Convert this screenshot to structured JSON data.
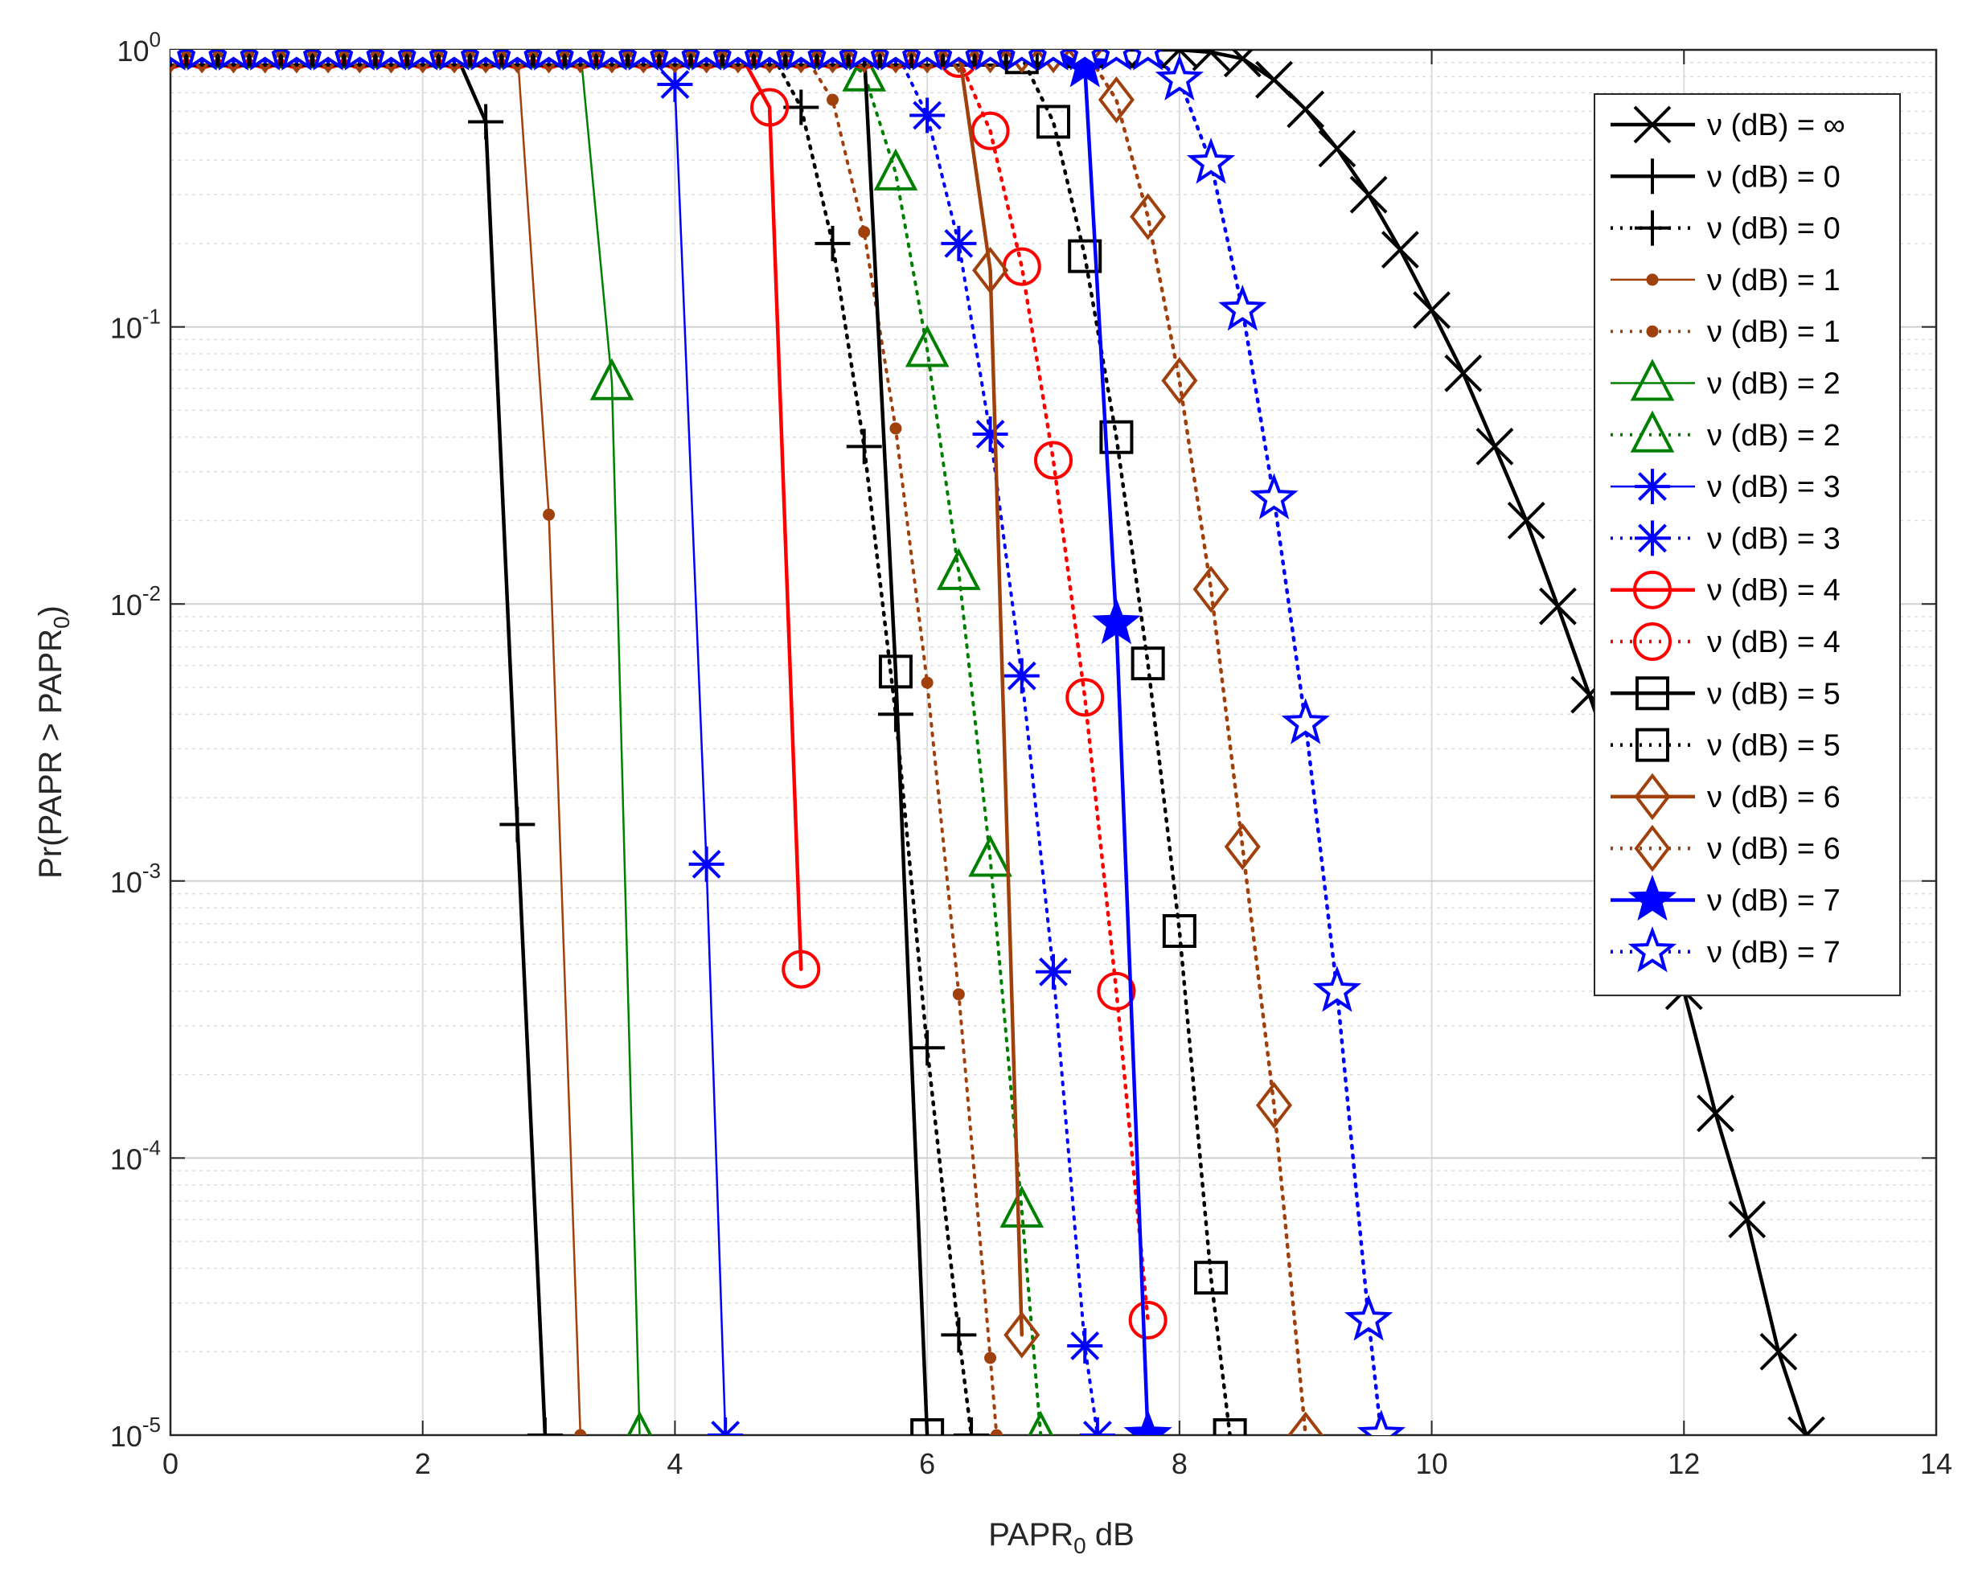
{
  "chart_data": {
    "type": "line",
    "title": "",
    "xlabel": "PAPR",
    "xlabel_sub": "0",
    "xlabel_suffix": " dB",
    "ylabel": "Pr(PAPR > PAPR",
    "ylabel_sub": "0",
    "ylabel_suffix": ")",
    "x_scale": "linear",
    "y_scale": "log",
    "xlim": [
      0,
      14
    ],
    "ylim": [
      1e-05,
      1
    ],
    "xticks": [
      0,
      2,
      4,
      6,
      8,
      10,
      12,
      14
    ],
    "xtick_labels": [
      "0",
      "2",
      "4",
      "6",
      "8",
      "10",
      "12",
      "14"
    ],
    "yticks": [
      1e-05,
      0.0001,
      0.001,
      0.01,
      0.1,
      1
    ],
    "ytick_labels": [
      {
        "base": "10",
        "exp": "-5"
      },
      {
        "base": "10",
        "exp": "-4"
      },
      {
        "base": "10",
        "exp": "-3"
      },
      {
        "base": "10",
        "exp": "-2"
      },
      {
        "base": "10",
        "exp": "-1"
      },
      {
        "base": "10",
        "exp": "0"
      }
    ],
    "grid": true,
    "legend_position": "top-right",
    "series": [
      {
        "name": "ν (dB) = ∞",
        "color": "#000000",
        "dash": "solid",
        "marker": "x",
        "x": [
          0,
          0.25,
          0.5,
          0.75,
          1,
          1.25,
          1.5,
          1.75,
          2,
          2.25,
          2.5,
          2.75,
          3,
          3.25,
          3.5,
          3.75,
          4,
          4.25,
          4.5,
          4.75,
          5,
          5.25,
          5.5,
          5.75,
          6,
          6.25,
          6.5,
          6.75,
          7,
          7.25,
          7.5,
          7.75,
          8,
          8.25,
          8.5,
          8.75,
          9,
          9.25,
          9.5,
          9.75,
          10,
          10.25,
          10.5,
          10.75,
          11,
          11.25,
          11.5,
          11.75,
          12,
          12.25,
          12.5,
          12.75,
          12.97
        ],
        "y": [
          1,
          1,
          1,
          1,
          1,
          1,
          1,
          1,
          1,
          1,
          1,
          1,
          1,
          1,
          1,
          1,
          1,
          1,
          1,
          1,
          1,
          1,
          1,
          1,
          1,
          1,
          1,
          1,
          1,
          1,
          1,
          1,
          1,
          0.98,
          0.93,
          0.78,
          0.61,
          0.44,
          0.3,
          0.19,
          0.115,
          0.068,
          0.037,
          0.02,
          0.0098,
          0.0047,
          0.0022,
          0.00095,
          0.0004,
          0.000145,
          6e-05,
          2e-05,
          1e-05
        ]
      },
      {
        "name": "ν (dB) = 0",
        "color": "#000000",
        "dash": "solid",
        "marker": "plus",
        "x": [
          0,
          0.25,
          0.5,
          0.75,
          1,
          1.25,
          1.5,
          1.75,
          2,
          2.25,
          2.5,
          2.75,
          2.97
        ],
        "y": [
          1,
          1,
          1,
          1,
          1,
          1,
          1,
          1,
          1,
          1,
          0.55,
          0.0016,
          1e-05
        ]
      },
      {
        "name": "ν (dB) = 0",
        "color": "#000000",
        "dash": "dotted",
        "marker": "plus",
        "x": [
          0,
          0.25,
          0.5,
          0.75,
          1,
          1.25,
          1.5,
          1.75,
          2,
          2.25,
          2.5,
          2.75,
          3,
          3.25,
          3.5,
          3.75,
          4,
          4.25,
          4.5,
          4.75,
          5,
          5.25,
          5.5,
          5.75,
          6,
          6.25,
          6.35
        ],
        "y": [
          1,
          1,
          1,
          1,
          1,
          1,
          1,
          1,
          1,
          1,
          1,
          1,
          1,
          1,
          1,
          1,
          1,
          1,
          1,
          1,
          0.62,
          0.2,
          0.037,
          0.004,
          0.00025,
          2.3e-05,
          1e-05
        ]
      },
      {
        "name": "ν (dB) = 1",
        "color": "#A0400C",
        "dash": "solid",
        "marker": "dot",
        "x": [
          0,
          0.25,
          0.5,
          0.75,
          1,
          1.25,
          1.5,
          1.75,
          2,
          2.25,
          2.5,
          2.75,
          3,
          3.25
        ],
        "y": [
          1,
          1,
          1,
          1,
          1,
          1,
          1,
          1,
          1,
          1,
          1,
          1,
          0.021,
          1e-05
        ]
      },
      {
        "name": "ν (dB) = 1",
        "color": "#A0400C",
        "dash": "dotted",
        "marker": "dot",
        "x": [
          0,
          0.25,
          0.5,
          0.75,
          1,
          1.25,
          1.5,
          1.75,
          2,
          2.25,
          2.5,
          2.75,
          3,
          3.25,
          3.5,
          3.75,
          4,
          4.25,
          4.5,
          4.75,
          5,
          5.25,
          5.5,
          5.75,
          6,
          6.25,
          6.5,
          6.55
        ],
        "y": [
          1,
          1,
          1,
          1,
          1,
          1,
          1,
          1,
          1,
          1,
          1,
          1,
          1,
          1,
          1,
          1,
          1,
          1,
          1,
          1,
          1,
          0.66,
          0.22,
          0.043,
          0.0052,
          0.00039,
          1.9e-05,
          1e-05
        ]
      },
      {
        "name": "ν (dB) = 2",
        "color": "#008000",
        "dash": "solid",
        "marker": "triangle",
        "x": [
          0,
          0.25,
          0.5,
          0.75,
          1,
          1.25,
          1.5,
          1.75,
          2,
          2.25,
          2.5,
          2.75,
          3,
          3.25,
          3.5,
          3.72
        ],
        "y": [
          1,
          1,
          1,
          1,
          1,
          1,
          1,
          1,
          1,
          1,
          1,
          1,
          1,
          1,
          0.063,
          1e-05
        ]
      },
      {
        "name": "ν (dB) = 2",
        "color": "#008000",
        "dash": "dotted",
        "marker": "triangle",
        "x": [
          0,
          0.25,
          0.5,
          0.75,
          1,
          1.25,
          1.5,
          1.75,
          2,
          2.25,
          2.5,
          2.75,
          3,
          3.25,
          3.5,
          3.75,
          4,
          4.25,
          4.5,
          4.75,
          5,
          5.25,
          5.5,
          5.75,
          6,
          6.25,
          6.5,
          6.75,
          6.9
        ],
        "y": [
          1,
          1,
          1,
          1,
          1,
          1,
          1,
          1,
          1,
          1,
          1,
          1,
          1,
          1,
          1,
          1,
          1,
          1,
          1,
          1,
          1,
          1,
          0.82,
          0.36,
          0.083,
          0.013,
          0.0012,
          6.5e-05,
          1e-05
        ]
      },
      {
        "name": "ν (dB) = 3",
        "color": "#0000FF",
        "dash": "solid",
        "marker": "asterisk",
        "x": [
          0,
          0.25,
          0.5,
          0.75,
          1,
          1.25,
          1.5,
          1.75,
          2,
          2.25,
          2.5,
          2.75,
          3,
          3.25,
          3.5,
          3.75,
          4,
          4.25,
          4.4
        ],
        "y": [
          1,
          1,
          1,
          1,
          1,
          1,
          1,
          1,
          1,
          1,
          1,
          1,
          1,
          1,
          1,
          1,
          0.75,
          0.00115,
          1e-05
        ]
      },
      {
        "name": "ν (dB) = 3",
        "color": "#0000FF",
        "dash": "dotted",
        "marker": "asterisk",
        "x": [
          0,
          0.25,
          0.5,
          0.75,
          1,
          1.25,
          1.5,
          1.75,
          2,
          2.25,
          2.5,
          2.75,
          3,
          3.25,
          3.5,
          3.75,
          4,
          4.25,
          4.5,
          4.75,
          5,
          5.25,
          5.5,
          5.75,
          6,
          6.25,
          6.5,
          6.75,
          7,
          7.25,
          7.35
        ],
        "y": [
          1,
          1,
          1,
          1,
          1,
          1,
          1,
          1,
          1,
          1,
          1,
          1,
          1,
          1,
          1,
          1,
          1,
          1,
          1,
          1,
          1,
          1,
          1,
          1,
          0.58,
          0.2,
          0.041,
          0.0055,
          0.00047,
          2.1e-05,
          1e-05
        ]
      },
      {
        "name": "ν (dB) = 4",
        "color": "#FF0000",
        "dash": "solid",
        "marker": "circle",
        "x": [
          0,
          0.25,
          0.5,
          0.75,
          1,
          1.25,
          1.5,
          1.75,
          2,
          2.25,
          2.5,
          2.75,
          3,
          3.25,
          3.5,
          3.75,
          4,
          4.25,
          4.5,
          4.75,
          5
        ],
        "y": [
          1,
          1,
          1,
          1,
          1,
          1,
          1,
          1,
          1,
          1,
          1,
          1,
          1,
          1,
          1,
          1,
          1,
          1,
          1,
          0.62,
          0.00048
        ]
      },
      {
        "name": "ν (dB) = 4",
        "color": "#FF0000",
        "dash": "dotted",
        "marker": "circle",
        "x": [
          0,
          0.25,
          0.5,
          0.75,
          1,
          1.25,
          1.5,
          1.75,
          2,
          2.25,
          2.5,
          2.75,
          3,
          3.25,
          3.5,
          3.75,
          4,
          4.25,
          4.5,
          4.75,
          5,
          5.25,
          5.5,
          5.75,
          6,
          6.25,
          6.5,
          6.75,
          7,
          7.25,
          7.5,
          7.75
        ],
        "y": [
          1,
          1,
          1,
          1,
          1,
          1,
          1,
          1,
          1,
          1,
          1,
          1,
          1,
          1,
          1,
          1,
          1,
          1,
          1,
          1,
          1,
          1,
          1,
          1,
          1,
          0.93,
          0.51,
          0.165,
          0.033,
          0.0046,
          0.0004,
          2.6e-05
        ]
      },
      {
        "name": "ν (dB) = 5",
        "color": "#000000",
        "dash": "solid",
        "marker": "square",
        "x": [
          0,
          0.25,
          0.5,
          0.75,
          1,
          1.25,
          1.5,
          1.75,
          2,
          2.25,
          2.5,
          2.75,
          3,
          3.25,
          3.5,
          3.75,
          4,
          4.25,
          4.5,
          4.75,
          5,
          5.25,
          5.5,
          5.75,
          6
        ],
        "y": [
          1,
          1,
          1,
          1,
          1,
          1,
          1,
          1,
          1,
          1,
          1,
          1,
          1,
          1,
          1,
          1,
          1,
          1,
          1,
          1,
          1,
          1,
          1,
          0.0057,
          1e-05
        ]
      },
      {
        "name": "ν (dB) = 5",
        "color": "#000000",
        "dash": "dotted",
        "marker": "square",
        "x": [
          0,
          0.25,
          0.5,
          0.75,
          1,
          1.25,
          1.5,
          1.75,
          2,
          2.25,
          2.5,
          2.75,
          3,
          3.25,
          3.5,
          3.75,
          4,
          4.25,
          4.5,
          4.75,
          5,
          5.25,
          5.5,
          5.75,
          6,
          6.25,
          6.5,
          6.75,
          7,
          7.25,
          7.5,
          7.75,
          8,
          8.25,
          8.4
        ],
        "y": [
          1,
          1,
          1,
          1,
          1,
          1,
          1,
          1,
          1,
          1,
          1,
          1,
          1,
          1,
          1,
          1,
          1,
          1,
          1,
          1,
          1,
          1,
          1,
          1,
          1,
          1,
          1,
          0.94,
          0.55,
          0.18,
          0.04,
          0.0061,
          0.00066,
          3.7e-05,
          1e-05
        ]
      },
      {
        "name": "ν (dB) = 6",
        "color": "#A0400C",
        "dash": "solid",
        "marker": "diamond",
        "x": [
          0,
          0.25,
          0.5,
          0.75,
          1,
          1.25,
          1.5,
          1.75,
          2,
          2.25,
          2.5,
          2.75,
          3,
          3.25,
          3.5,
          3.75,
          4,
          4.25,
          4.5,
          4.75,
          5,
          5.25,
          5.5,
          5.75,
          6,
          6.25,
          6.5,
          6.75
        ],
        "y": [
          1,
          1,
          1,
          1,
          1,
          1,
          1,
          1,
          1,
          1,
          1,
          1,
          1,
          1,
          1,
          1,
          1,
          1,
          1,
          1,
          1,
          1,
          1,
          1,
          1,
          1,
          0.16,
          2.3e-05
        ]
      },
      {
        "name": "ν (dB) = 6",
        "color": "#A0400C",
        "dash": "dotted",
        "marker": "diamond",
        "x": [
          0,
          0.25,
          0.5,
          0.75,
          1,
          1.25,
          1.5,
          1.75,
          2,
          2.25,
          2.5,
          2.75,
          3,
          3.25,
          3.5,
          3.75,
          4,
          4.25,
          4.5,
          4.75,
          5,
          5.25,
          5.5,
          5.75,
          6,
          6.25,
          6.5,
          6.75,
          7,
          7.25,
          7.5,
          7.75,
          8,
          8.25,
          8.5,
          8.75,
          9
        ],
        "y": [
          1,
          1,
          1,
          1,
          1,
          1,
          1,
          1,
          1,
          1,
          1,
          1,
          1,
          1,
          1,
          1,
          1,
          1,
          1,
          1,
          1,
          1,
          1,
          1,
          1,
          1,
          1,
          1,
          1,
          1,
          0.66,
          0.25,
          0.064,
          0.0113,
          0.00133,
          0.000155,
          1e-05
        ]
      },
      {
        "name": "ν (dB) = 7",
        "color": "#0000FF",
        "dash": "solid",
        "marker": "star-filled",
        "x": [
          0,
          0.25,
          0.5,
          0.75,
          1,
          1.25,
          1.5,
          1.75,
          2,
          2.25,
          2.5,
          2.75,
          3,
          3.25,
          3.5,
          3.75,
          4,
          4.25,
          4.5,
          4.75,
          5,
          5.25,
          5.5,
          5.75,
          6,
          6.25,
          6.5,
          6.75,
          7,
          7.25,
          7.5,
          7.75
        ],
        "y": [
          1,
          1,
          1,
          1,
          1,
          1,
          1,
          1,
          1,
          1,
          1,
          1,
          1,
          1,
          1,
          1,
          1,
          1,
          1,
          1,
          1,
          1,
          1,
          1,
          1,
          1,
          1,
          1,
          1,
          0.87,
          0.0085,
          1e-05
        ]
      },
      {
        "name": "ν (dB) = 7",
        "color": "#0000FF",
        "dash": "dotted",
        "marker": "star-open",
        "x": [
          0,
          0.25,
          0.5,
          0.75,
          1,
          1.25,
          1.5,
          1.75,
          2,
          2.25,
          2.5,
          2.75,
          3,
          3.25,
          3.5,
          3.75,
          4,
          4.25,
          4.5,
          4.75,
          5,
          5.25,
          5.5,
          5.75,
          6,
          6.25,
          6.5,
          6.75,
          7,
          7.25,
          7.5,
          7.75,
          8,
          8.25,
          8.5,
          8.75,
          9,
          9.25,
          9.5,
          9.6
        ],
        "y": [
          1,
          1,
          1,
          1,
          1,
          1,
          1,
          1,
          1,
          1,
          1,
          1,
          1,
          1,
          1,
          1,
          1,
          1,
          1,
          1,
          1,
          1,
          1,
          1,
          1,
          1,
          1,
          1,
          1,
          1,
          1,
          1,
          0.78,
          0.39,
          0.115,
          0.024,
          0.0037,
          0.0004,
          2.6e-05,
          1e-05
        ]
      }
    ]
  }
}
